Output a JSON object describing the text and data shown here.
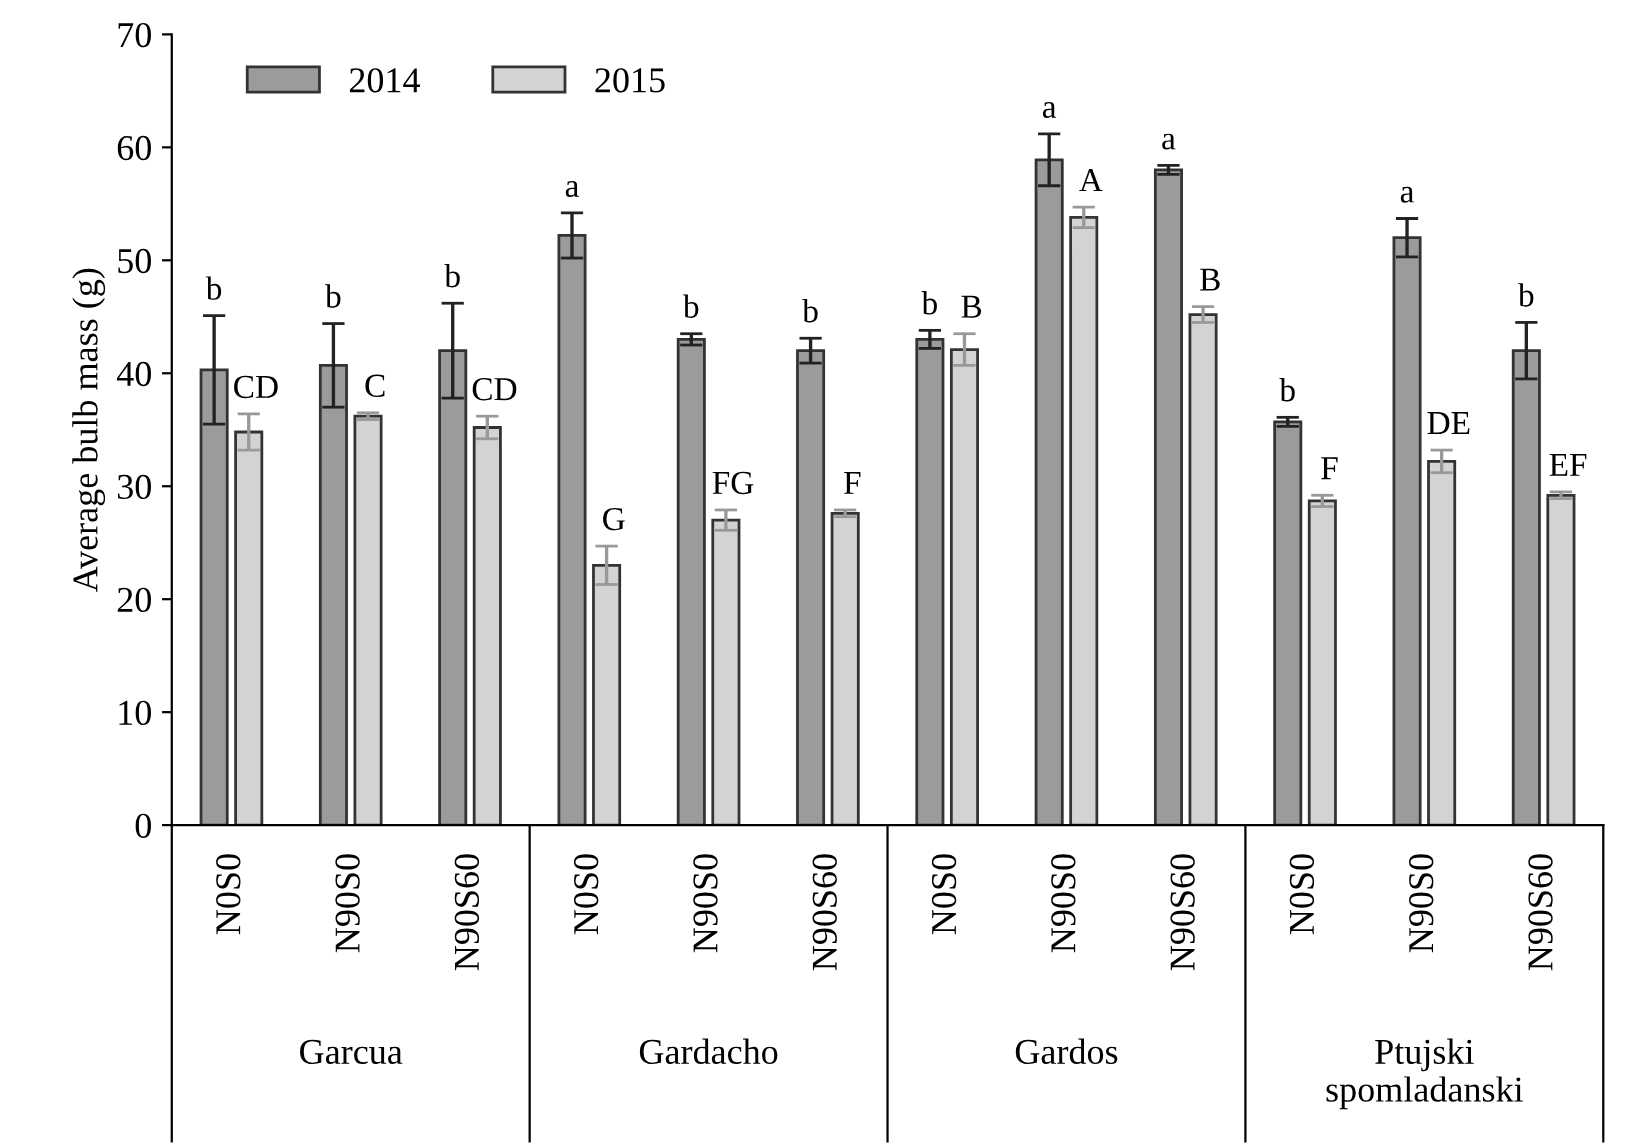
{
  "chart_data": {
    "type": "bar",
    "ylabel": "Average bulb mass (g)",
    "categories": [
      "N0S0",
      "N90S0",
      "N90S60",
      "N0S0",
      "N90S0",
      "N90S60",
      "N0S0",
      "N90S0",
      "N90S60",
      "N0S0",
      "N90S0",
      "N90S60"
    ],
    "series": [
      {
        "name": "2014",
        "color": "#9b9b9b",
        "values": [
          40.3,
          40.7,
          42.0,
          52.2,
          43.0,
          42.0,
          43.0,
          58.9,
          58.0,
          35.7,
          52.0,
          42.0
        ],
        "errors": [
          4.8,
          3.7,
          4.2,
          2.0,
          0.5,
          1.1,
          0.8,
          2.3,
          0.4,
          0.4,
          1.7,
          2.5
        ],
        "value_labels": [
          "b",
          "b",
          "b",
          "a",
          "b",
          "b",
          "b",
          "a",
          "a",
          "b",
          "a",
          "b"
        ]
      },
      {
        "name": "2015",
        "color": "#d3d3d3",
        "values": [
          34.8,
          36.2,
          35.2,
          23.0,
          27.0,
          27.6,
          42.1,
          53.8,
          45.2,
          28.7,
          32.2,
          29.2
        ],
        "errors": [
          1.6,
          0.3,
          1.0,
          1.7,
          0.9,
          0.3,
          1.4,
          0.9,
          0.7,
          0.5,
          1.0,
          0.3
        ],
        "value_labels": [
          "CD",
          "C",
          "CD",
          "G",
          "FG",
          "F",
          "B",
          "A",
          "B",
          "F",
          "DE",
          "EF"
        ]
      }
    ],
    "ylim": [
      0,
      70
    ],
    "yticks": [
      0,
      10,
      20,
      30,
      40,
      50,
      60,
      70
    ],
    "grid": false,
    "legend": "top left",
    "annotations": [
      "Garcua",
      "Gardacho",
      "Gardos",
      "Ptujski\nspomladanski"
    ]
  }
}
